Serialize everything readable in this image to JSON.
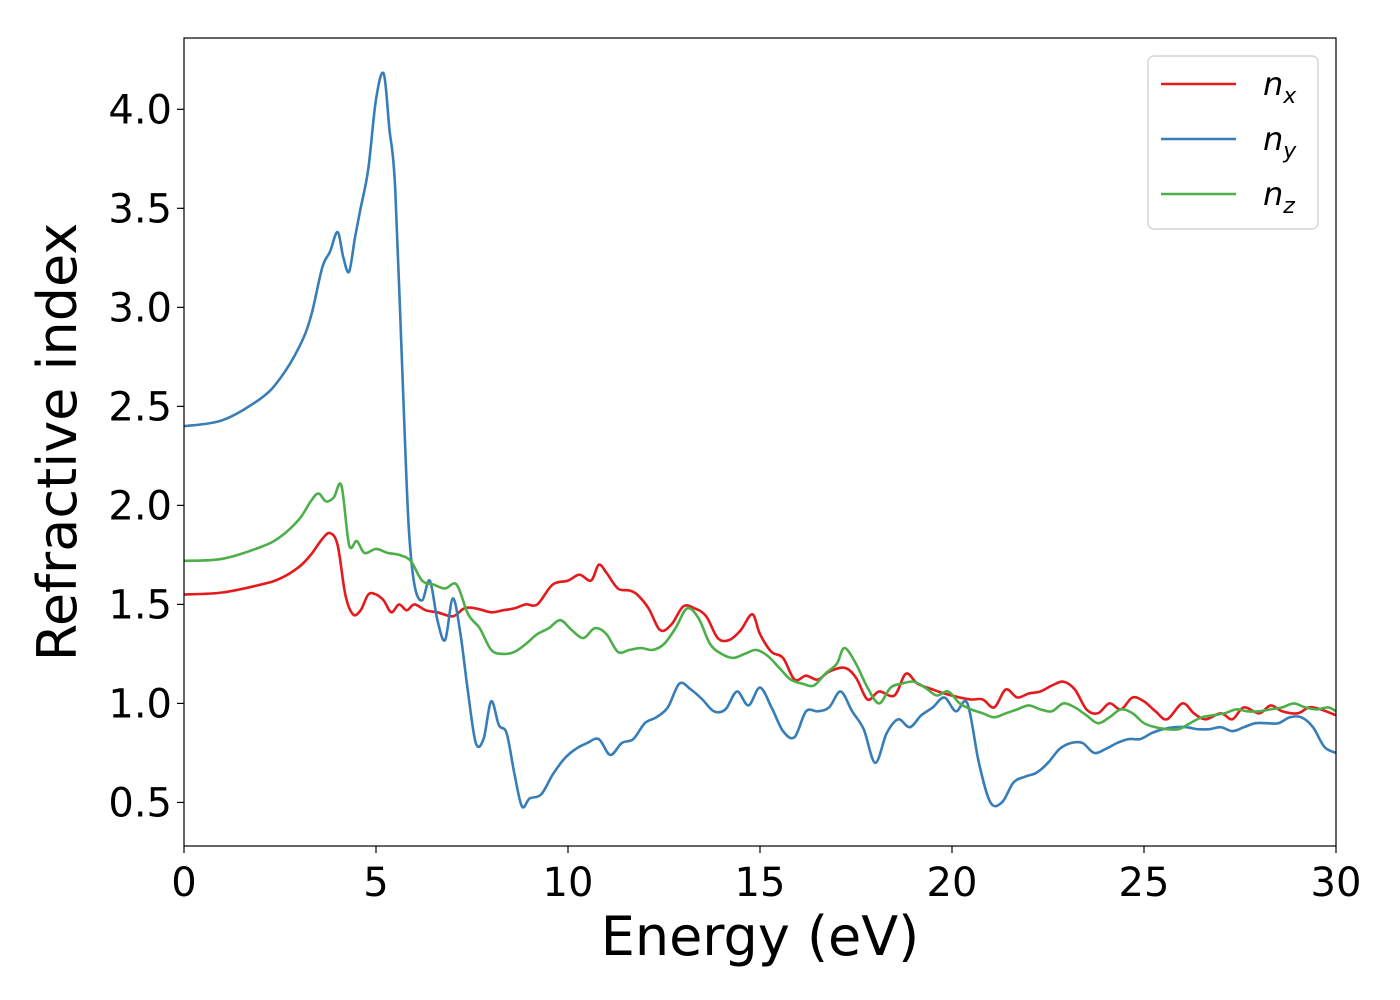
{
  "chart_data": {
    "type": "line",
    "xlabel": "Energy (eV)",
    "ylabel": "Refractive index",
    "xlim": [
      0,
      30
    ],
    "ylim": [
      0.28,
      4.36
    ],
    "xticks": [
      0,
      5,
      10,
      15,
      20,
      25,
      30
    ],
    "xtick_labels": [
      "0",
      "5",
      "10",
      "15",
      "20",
      "25",
      "30"
    ],
    "yticks": [
      0.5,
      1.0,
      1.5,
      2.0,
      2.5,
      3.0,
      3.5,
      4.0
    ],
    "ytick_labels": [
      "0.5",
      "1.0",
      "1.5",
      "2.0",
      "2.5",
      "3.0",
      "3.5",
      "4.0"
    ],
    "grid": false,
    "legend_position": "top-right",
    "series": [
      {
        "name": "n",
        "subscript": "x",
        "color": "#e41a1c",
        "x": [
          0,
          1,
          2,
          2.5,
          3,
          3.3,
          3.6,
          3.8,
          4.0,
          4.2,
          4.4,
          4.6,
          4.8,
          5.0,
          5.2,
          5.4,
          5.6,
          5.8,
          6.0,
          6.3,
          6.6,
          7.0,
          7.3,
          7.6,
          8.0,
          8.3,
          8.6,
          8.9,
          9.2,
          9.6,
          10.0,
          10.3,
          10.6,
          10.8,
          11.0,
          11.3,
          11.6,
          11.8,
          12.1,
          12.4,
          12.7,
          13.0,
          13.3,
          13.6,
          13.9,
          14.2,
          14.5,
          14.8,
          15.0,
          15.3,
          15.6,
          15.9,
          16.2,
          16.5,
          16.8,
          17.2,
          17.5,
          17.8,
          18.1,
          18.5,
          18.8,
          19.1,
          19.5,
          19.8,
          20.2,
          20.5,
          20.8,
          21.1,
          21.4,
          21.7,
          22.0,
          22.3,
          22.6,
          22.9,
          23.2,
          23.5,
          23.8,
          24.1,
          24.4,
          24.7,
          25.0,
          25.3,
          25.6,
          26.0,
          26.3,
          26.6,
          27.0,
          27.3,
          27.6,
          28.0,
          28.3,
          28.6,
          29.0,
          29.3,
          29.6,
          30.0
        ],
        "values": [
          1.55,
          1.56,
          1.6,
          1.63,
          1.69,
          1.75,
          1.83,
          1.86,
          1.8,
          1.55,
          1.45,
          1.47,
          1.55,
          1.55,
          1.52,
          1.46,
          1.5,
          1.47,
          1.5,
          1.47,
          1.46,
          1.44,
          1.48,
          1.48,
          1.46,
          1.47,
          1.48,
          1.5,
          1.5,
          1.6,
          1.62,
          1.65,
          1.62,
          1.7,
          1.66,
          1.58,
          1.57,
          1.55,
          1.48,
          1.37,
          1.4,
          1.49,
          1.48,
          1.44,
          1.33,
          1.32,
          1.37,
          1.45,
          1.35,
          1.26,
          1.23,
          1.12,
          1.14,
          1.12,
          1.16,
          1.18,
          1.13,
          1.02,
          1.06,
          1.04,
          1.15,
          1.1,
          1.07,
          1.05,
          1.03,
          1.02,
          1.02,
          0.98,
          1.07,
          1.03,
          1.05,
          1.06,
          1.09,
          1.11,
          1.07,
          0.97,
          0.95,
          1.0,
          0.97,
          1.03,
          1.01,
          0.96,
          0.92,
          1.0,
          0.95,
          0.92,
          0.95,
          0.92,
          0.98,
          0.95,
          0.99,
          0.96,
          0.95,
          0.98,
          0.97,
          0.94
        ]
      },
      {
        "name": "n",
        "subscript": "y",
        "color": "#377eb8",
        "x": [
          0,
          1,
          2,
          2.5,
          3,
          3.3,
          3.6,
          3.8,
          4.0,
          4.15,
          4.3,
          4.45,
          4.6,
          4.8,
          5.0,
          5.2,
          5.35,
          5.5,
          5.7,
          5.85,
          6.0,
          6.2,
          6.4,
          6.6,
          6.8,
          7.0,
          7.2,
          7.4,
          7.6,
          7.8,
          8.0,
          8.2,
          8.4,
          8.6,
          8.8,
          9.0,
          9.3,
          9.6,
          9.9,
          10.2,
          10.5,
          10.8,
          11.1,
          11.4,
          11.7,
          12.0,
          12.3,
          12.6,
          12.9,
          13.2,
          13.5,
          13.8,
          14.1,
          14.4,
          14.7,
          15.0,
          15.3,
          15.6,
          15.9,
          16.2,
          16.5,
          16.8,
          17.1,
          17.4,
          17.7,
          18.0,
          18.3,
          18.6,
          18.9,
          19.2,
          19.5,
          19.8,
          20.1,
          20.4,
          20.7,
          21.0,
          21.3,
          21.6,
          21.9,
          22.2,
          22.5,
          22.8,
          23.1,
          23.4,
          23.7,
          24.0,
          24.3,
          24.6,
          24.9,
          25.2,
          25.5,
          25.8,
          26.1,
          26.4,
          26.7,
          27.0,
          27.3,
          27.6,
          27.9,
          28.2,
          28.5,
          28.8,
          29.1,
          29.4,
          29.7,
          30.0
        ],
        "values": [
          2.4,
          2.43,
          2.54,
          2.64,
          2.8,
          2.95,
          3.2,
          3.28,
          3.38,
          3.25,
          3.18,
          3.35,
          3.5,
          3.7,
          4.05,
          4.18,
          3.9,
          3.6,
          2.6,
          1.9,
          1.6,
          1.52,
          1.62,
          1.42,
          1.32,
          1.53,
          1.35,
          1.05,
          0.8,
          0.82,
          1.01,
          0.89,
          0.85,
          0.65,
          0.48,
          0.52,
          0.54,
          0.64,
          0.72,
          0.77,
          0.8,
          0.82,
          0.74,
          0.8,
          0.82,
          0.9,
          0.93,
          0.98,
          1.1,
          1.07,
          1.02,
          0.96,
          0.97,
          1.06,
          0.99,
          1.08,
          0.98,
          0.86,
          0.83,
          0.96,
          0.96,
          0.98,
          1.06,
          0.96,
          0.87,
          0.7,
          0.85,
          0.92,
          0.88,
          0.94,
          0.98,
          1.03,
          0.96,
          1.0,
          0.7,
          0.5,
          0.5,
          0.6,
          0.63,
          0.65,
          0.7,
          0.77,
          0.8,
          0.8,
          0.75,
          0.77,
          0.8,
          0.82,
          0.82,
          0.85,
          0.87,
          0.88,
          0.88,
          0.87,
          0.87,
          0.88,
          0.86,
          0.88,
          0.9,
          0.9,
          0.9,
          0.93,
          0.93,
          0.88,
          0.78,
          0.75
        ]
      },
      {
        "name": "n",
        "subscript": "z",
        "color": "#4daf4a",
        "x": [
          0,
          1,
          2,
          2.5,
          3,
          3.3,
          3.5,
          3.7,
          3.9,
          4.1,
          4.3,
          4.5,
          4.7,
          5.0,
          5.3,
          5.6,
          5.9,
          6.2,
          6.5,
          6.8,
          7.1,
          7.4,
          7.7,
          8.0,
          8.3,
          8.6,
          8.9,
          9.2,
          9.5,
          9.8,
          10.1,
          10.4,
          10.7,
          11.0,
          11.3,
          11.6,
          11.9,
          12.2,
          12.5,
          12.8,
          13.1,
          13.4,
          13.7,
          14.0,
          14.3,
          14.6,
          14.9,
          15.2,
          15.5,
          15.8,
          16.1,
          16.4,
          16.7,
          17.0,
          17.2,
          17.5,
          17.8,
          18.1,
          18.4,
          18.7,
          19.0,
          19.3,
          19.6,
          19.9,
          20.2,
          20.5,
          20.8,
          21.1,
          21.4,
          21.7,
          22.0,
          22.3,
          22.6,
          22.9,
          23.2,
          23.5,
          23.8,
          24.1,
          24.4,
          24.7,
          25.0,
          25.3,
          25.6,
          25.9,
          26.2,
          26.5,
          26.8,
          27.1,
          27.4,
          27.7,
          28.0,
          28.3,
          28.6,
          28.9,
          29.2,
          29.5,
          29.8,
          30.0
        ],
        "values": [
          1.72,
          1.73,
          1.79,
          1.84,
          1.93,
          2.02,
          2.06,
          2.02,
          2.04,
          2.1,
          1.8,
          1.82,
          1.76,
          1.78,
          1.76,
          1.75,
          1.72,
          1.62,
          1.6,
          1.58,
          1.6,
          1.45,
          1.38,
          1.27,
          1.25,
          1.26,
          1.3,
          1.35,
          1.38,
          1.42,
          1.37,
          1.33,
          1.38,
          1.35,
          1.26,
          1.27,
          1.28,
          1.27,
          1.3,
          1.38,
          1.48,
          1.43,
          1.3,
          1.25,
          1.23,
          1.25,
          1.27,
          1.24,
          1.18,
          1.12,
          1.1,
          1.09,
          1.15,
          1.2,
          1.28,
          1.2,
          1.08,
          1.0,
          1.08,
          1.1,
          1.11,
          1.08,
          1.04,
          1.06,
          1.0,
          0.97,
          0.95,
          0.93,
          0.95,
          0.97,
          0.99,
          0.97,
          0.96,
          1.0,
          0.98,
          0.94,
          0.9,
          0.93,
          0.97,
          0.95,
          0.9,
          0.88,
          0.87,
          0.87,
          0.9,
          0.93,
          0.94,
          0.95,
          0.97,
          0.96,
          0.96,
          0.97,
          0.98,
          1.0,
          0.98,
          0.97,
          0.98,
          0.96
        ]
      }
    ]
  }
}
